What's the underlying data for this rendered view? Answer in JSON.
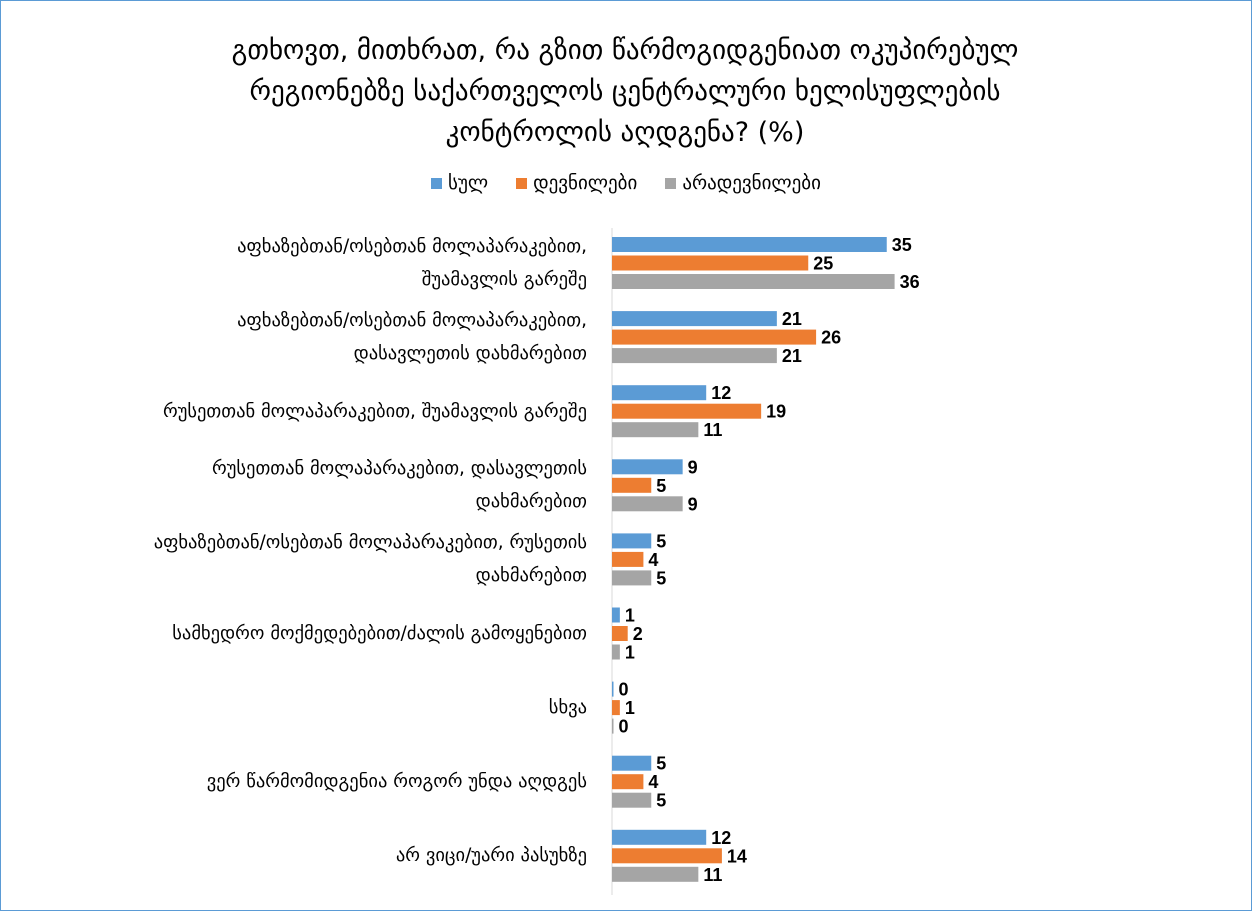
{
  "chart_data": {
    "type": "bar",
    "orientation": "horizontal",
    "title": "გთხოვთ, მითხრათ, რა გზით წარმოგიდგენიათ ოკუპირებულ რეგიონებზე საქართველოს ცენტრალური ხელისუფლების კონტროლის აღდგენა? (%)",
    "title_lines": [
      "გთხოვთ, მითხრათ, რა გზით წარმოგიდგენიათ ოკუპირებულ",
      "რეგიონებზე საქართველოს ცენტრალური ხელისუფლების",
      "კონტროლის აღდგენა? (%)"
    ],
    "legend_position": "top",
    "grid": false,
    "categories": [
      "აფხაზებთან/ოსებთან მოლაპარაკებით, შუამავლის გარეშე",
      "აფხაზებთან/ოსებთან მოლაპარაკებით, დასავლეთის დახმარებით",
      "რუსეთთან მოლაპარაკებით, შუამავლის გარეშე",
      "რუსეთთან მოლაპარაკებით, დასავლეთის დახმარებით",
      "აფხაზებთან/ოსებთან მოლაპარაკებით, რუსეთის დახმარებით",
      "სამხედრო მოქმედებებით/ძალის გამოყენებით",
      "სხვა",
      "ვერ წარმომიდგენია როგორ უნდა აღდგეს",
      "არ ვიცი/უარი პასუხზე"
    ],
    "category_lines": [
      [
        "აფხაზებთან/ოსებთან მოლაპარაკებით,",
        "შუამავლის გარეშე"
      ],
      [
        "აფხაზებთან/ოსებთან მოლაპარაკებით,",
        "დასავლეთის დახმარებით"
      ],
      [
        "რუსეთთან მოლაპარაკებით, შუამავლის გარეშე"
      ],
      [
        "რუსეთთან მოლაპარაკებით, დასავლეთის",
        "დახმარებით"
      ],
      [
        "აფხაზებთან/ოსებთან მოლაპარაკებით, რუსეთის",
        "დახმარებით"
      ],
      [
        "სამხედრო მოქმედებებით/ძალის გამოყენებით"
      ],
      [
        "სხვა"
      ],
      [
        "ვერ წარმომიდგენია როგორ უნდა აღდგეს"
      ],
      [
        "არ ვიცი/უარი პასუხზე"
      ]
    ],
    "series": [
      {
        "name": "სულ",
        "color": "#5b9bd5",
        "values": [
          35,
          21,
          12,
          9,
          5,
          1,
          0,
          5,
          12
        ]
      },
      {
        "name": "დევნილები",
        "color": "#ed7d31",
        "values": [
          25,
          26,
          19,
          5,
          4,
          2,
          1,
          4,
          14
        ]
      },
      {
        "name": "არადევნილები",
        "color": "#a5a5a5",
        "values": [
          36,
          21,
          11,
          9,
          5,
          1,
          0,
          5,
          11
        ]
      }
    ]
  }
}
